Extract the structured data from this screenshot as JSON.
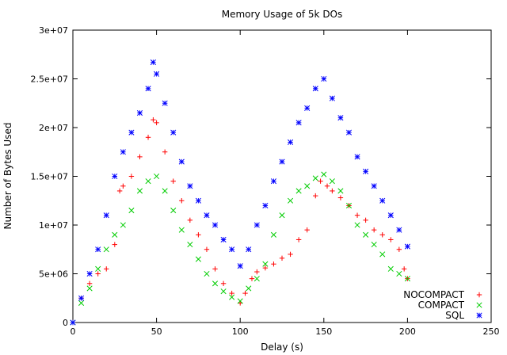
{
  "chart_data": {
    "type": "scatter",
    "title": "Memory Usage of 5k DOs",
    "xlabel": "Delay (s)",
    "ylabel": "Number of Bytes Used",
    "xlim": [
      0,
      250
    ],
    "ylim": [
      0,
      30000000
    ],
    "x_ticks": [
      0,
      50,
      100,
      150,
      200,
      250
    ],
    "x_tick_labels": [
      "0",
      "50",
      "100",
      "150",
      "200",
      "250"
    ],
    "y_ticks": [
      0,
      5000000,
      10000000,
      15000000,
      20000000,
      25000000,
      30000000
    ],
    "y_tick_labels": [
      "0",
      "5e+06",
      "1e+07",
      "1.5e+07",
      "2e+07",
      "2.5e+07",
      "3e+07"
    ],
    "grid": false,
    "legend_position": "bottom-right",
    "series": [
      {
        "name": "NOCOMPACT",
        "color": "#ff0000",
        "marker": "plus",
        "points": [
          [
            0,
            0
          ],
          [
            5,
            2500000
          ],
          [
            10,
            4000000
          ],
          [
            15,
            5000000
          ],
          [
            20,
            5500000
          ],
          [
            25,
            8000000
          ],
          [
            28,
            13500000
          ],
          [
            30,
            14000000
          ],
          [
            35,
            15000000
          ],
          [
            40,
            17000000
          ],
          [
            45,
            19000000
          ],
          [
            48,
            20800000
          ],
          [
            50,
            20500000
          ],
          [
            55,
            17500000
          ],
          [
            60,
            14500000
          ],
          [
            65,
            12500000
          ],
          [
            70,
            10500000
          ],
          [
            75,
            9000000
          ],
          [
            80,
            7500000
          ],
          [
            85,
            5500000
          ],
          [
            90,
            4000000
          ],
          [
            95,
            3000000
          ],
          [
            100,
            2000000
          ],
          [
            103,
            3000000
          ],
          [
            107,
            4500000
          ],
          [
            110,
            5200000
          ],
          [
            115,
            5600000
          ],
          [
            120,
            6000000
          ],
          [
            125,
            6600000
          ],
          [
            130,
            7000000
          ],
          [
            135,
            8500000
          ],
          [
            140,
            9500000
          ],
          [
            145,
            13000000
          ],
          [
            148,
            14500000
          ],
          [
            152,
            14000000
          ],
          [
            155,
            13500000
          ],
          [
            160,
            12800000
          ],
          [
            165,
            12000000
          ],
          [
            170,
            11000000
          ],
          [
            175,
            10500000
          ],
          [
            180,
            9500000
          ],
          [
            185,
            9000000
          ],
          [
            190,
            8500000
          ],
          [
            195,
            7500000
          ],
          [
            198,
            5500000
          ],
          [
            200,
            4500000
          ]
        ]
      },
      {
        "name": "COMPACT",
        "color": "#00cc00",
        "marker": "cross",
        "points": [
          [
            0,
            0
          ],
          [
            5,
            2000000
          ],
          [
            10,
            3500000
          ],
          [
            15,
            5500000
          ],
          [
            20,
            7500000
          ],
          [
            25,
            9000000
          ],
          [
            30,
            10000000
          ],
          [
            35,
            11500000
          ],
          [
            40,
            13500000
          ],
          [
            45,
            14500000
          ],
          [
            50,
            15000000
          ],
          [
            55,
            13500000
          ],
          [
            60,
            11500000
          ],
          [
            65,
            9500000
          ],
          [
            70,
            8000000
          ],
          [
            75,
            6500000
          ],
          [
            80,
            5000000
          ],
          [
            85,
            4000000
          ],
          [
            90,
            3200000
          ],
          [
            95,
            2600000
          ],
          [
            100,
            2200000
          ],
          [
            105,
            3500000
          ],
          [
            110,
            4500000
          ],
          [
            115,
            6000000
          ],
          [
            120,
            9000000
          ],
          [
            125,
            11000000
          ],
          [
            130,
            12500000
          ],
          [
            135,
            13500000
          ],
          [
            140,
            14000000
          ],
          [
            145,
            14800000
          ],
          [
            150,
            15200000
          ],
          [
            155,
            14500000
          ],
          [
            160,
            13500000
          ],
          [
            165,
            12000000
          ],
          [
            170,
            10000000
          ],
          [
            175,
            9000000
          ],
          [
            180,
            8000000
          ],
          [
            185,
            7000000
          ],
          [
            190,
            5500000
          ],
          [
            195,
            5000000
          ],
          [
            200,
            4500000
          ]
        ]
      },
      {
        "name": "SQL",
        "color": "#0000ff",
        "marker": "star",
        "points": [
          [
            0,
            0
          ],
          [
            5,
            2500000
          ],
          [
            10,
            5000000
          ],
          [
            15,
            7500000
          ],
          [
            20,
            11000000
          ],
          [
            25,
            15000000
          ],
          [
            30,
            17500000
          ],
          [
            35,
            19500000
          ],
          [
            40,
            21500000
          ],
          [
            45,
            24000000
          ],
          [
            48,
            26700000
          ],
          [
            50,
            25500000
          ],
          [
            55,
            22500000
          ],
          [
            60,
            19500000
          ],
          [
            65,
            16500000
          ],
          [
            70,
            14000000
          ],
          [
            75,
            12500000
          ],
          [
            80,
            11000000
          ],
          [
            85,
            10000000
          ],
          [
            90,
            8500000
          ],
          [
            95,
            7500000
          ],
          [
            100,
            5800000
          ],
          [
            105,
            7500000
          ],
          [
            110,
            10000000
          ],
          [
            115,
            12000000
          ],
          [
            120,
            14500000
          ],
          [
            125,
            16500000
          ],
          [
            130,
            18500000
          ],
          [
            135,
            20500000
          ],
          [
            140,
            22000000
          ],
          [
            145,
            24000000
          ],
          [
            150,
            25000000
          ],
          [
            155,
            23000000
          ],
          [
            160,
            21000000
          ],
          [
            165,
            19500000
          ],
          [
            170,
            17000000
          ],
          [
            175,
            15500000
          ],
          [
            180,
            14000000
          ],
          [
            185,
            12500000
          ],
          [
            190,
            11000000
          ],
          [
            195,
            9500000
          ],
          [
            200,
            7800000
          ]
        ]
      }
    ]
  }
}
